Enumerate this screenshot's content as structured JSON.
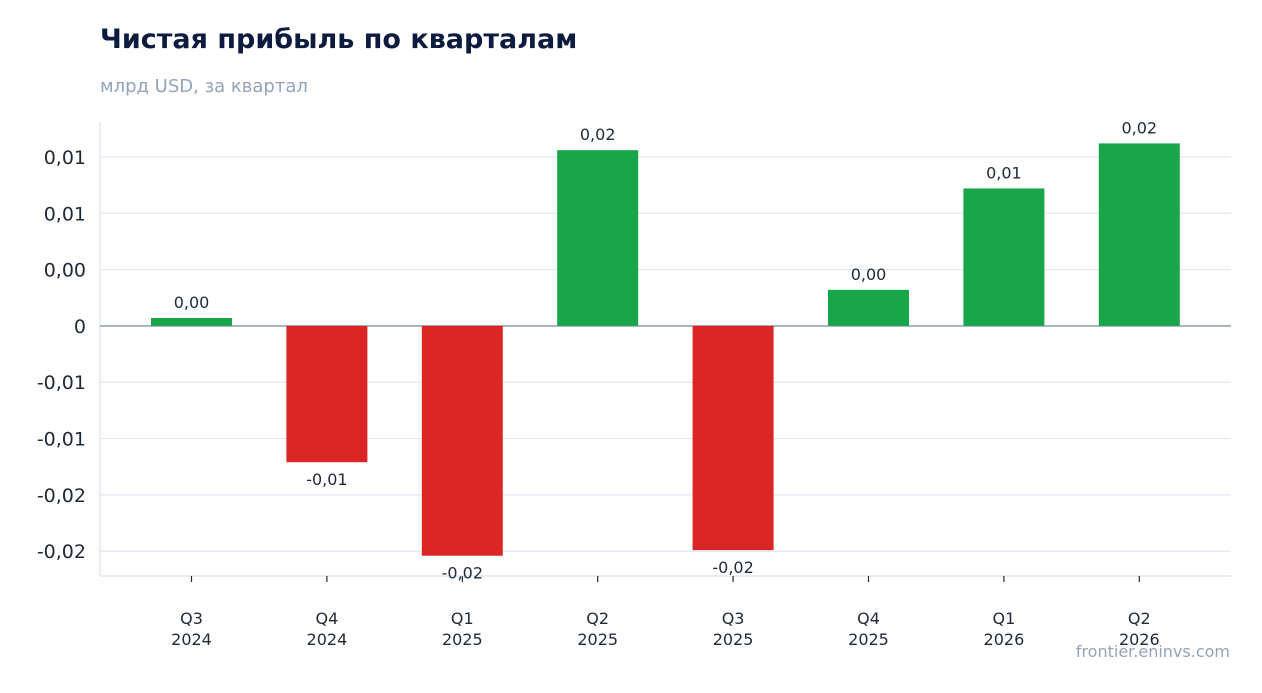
{
  "header": {
    "title": "Чистая прибыль по кварталам",
    "subtitle": "млрд USD, за квартал"
  },
  "footer": {
    "source": "frontier.eninvs.com"
  },
  "colors": {
    "positive": "#19a54a",
    "negative": "#dc2626",
    "grid": "#e2e8f0",
    "zero_line": "#94a3b8",
    "axis": "#e2e8f0",
    "title": "#0d1b3e",
    "subtitle": "#94a3b8"
  },
  "chart_data": {
    "type": "bar",
    "title": "Чистая прибыль по кварталам",
    "subtitle": "млрд USD, за квартал",
    "xlabel": "",
    "ylabel": "",
    "categories": [
      [
        "Q3",
        "2024"
      ],
      [
        "Q4",
        "2024"
      ],
      [
        "Q1",
        "2025"
      ],
      [
        "Q2",
        "2025"
      ],
      [
        "Q3",
        "2025"
      ],
      [
        "Q4",
        "2025"
      ],
      [
        "Q1",
        "2026"
      ],
      [
        "Q2",
        "2026"
      ]
    ],
    "values": [
      0.0007,
      -0.0121,
      -0.0204,
      0.0156,
      -0.0199,
      0.0032,
      0.0122,
      0.0162
    ],
    "data_labels": [
      "0,00",
      "-0,01",
      "-0,02",
      "0,02",
      "-0,02",
      "0,00",
      "0,01",
      "0,02"
    ],
    "ylim": [
      -0.0222,
      0.0181
    ],
    "yticks": [
      {
        "value": 0.015,
        "label": "0,01"
      },
      {
        "value": 0.01,
        "label": "0,01"
      },
      {
        "value": 0.005,
        "label": "0,00"
      },
      {
        "value": 0,
        "label": "0"
      },
      {
        "value": -0.005,
        "label": "-0,01"
      },
      {
        "value": -0.01,
        "label": "-0,01"
      },
      {
        "value": -0.015,
        "label": "-0,02"
      },
      {
        "value": -0.02,
        "label": "-0,02"
      }
    ],
    "grid": true,
    "legend": "none"
  }
}
